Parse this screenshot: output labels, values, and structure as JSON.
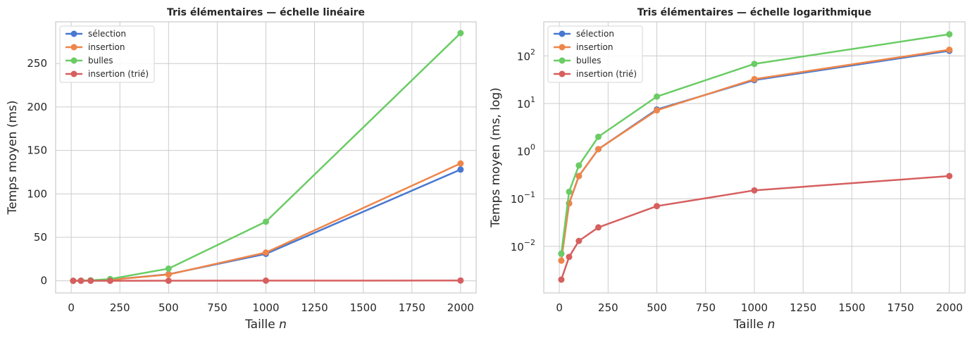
{
  "chart_data": [
    {
      "type": "line",
      "title": "Tris élémentaires — échelle linéaire",
      "xlabel": "Taille",
      "xlabel_var": "n",
      "ylabel": "Temps moyen (ms)",
      "yscale": "linear",
      "xlim": [
        -80,
        2080
      ],
      "ylim": [
        -14,
        298
      ],
      "xticks": [
        0,
        250,
        500,
        750,
        1000,
        1250,
        1500,
        1750,
        2000
      ],
      "yticks": [
        0,
        50,
        100,
        150,
        200,
        250
      ],
      "ytick_labels": [
        "0",
        "50",
        "100",
        "150",
        "200",
        "250"
      ],
      "legend_position": "top-left",
      "x": [
        10,
        50,
        100,
        200,
        500,
        1000,
        2000
      ],
      "series": [
        {
          "name": "sélection",
          "color": "#4878d0",
          "values": [
            0.007,
            0.08,
            0.3,
            1.1,
            7.5,
            31,
            128
          ]
        },
        {
          "name": "insertion",
          "color": "#ee854a",
          "values": [
            0.005,
            0.08,
            0.3,
            1.1,
            7.2,
            32.5,
            135
          ]
        },
        {
          "name": "bulles",
          "color": "#6acc64",
          "values": [
            0.007,
            0.14,
            0.5,
            2.0,
            14,
            68,
            285
          ]
        },
        {
          "name": "insertion (trié)",
          "color": "#d65f5f",
          "values": [
            0.002,
            0.006,
            0.013,
            0.025,
            0.07,
            0.15,
            0.3
          ]
        }
      ]
    },
    {
      "type": "line",
      "title": "Tris élémentaires — échelle logarithmique",
      "xlabel": "Taille",
      "xlabel_var": "n",
      "ylabel": "Temps moyen (ms, log)",
      "yscale": "log",
      "xlim": [
        -80,
        2080
      ],
      "ylim": [
        0.00105,
        520
      ],
      "xticks": [
        0,
        250,
        500,
        750,
        1000,
        1250,
        1500,
        1750,
        2000
      ],
      "yticks": [
        0.01,
        0.1,
        1,
        10,
        100
      ],
      "ytick_labels": [
        {
          "base": "10",
          "exp": "−2"
        },
        {
          "base": "10",
          "exp": "−1"
        },
        {
          "base": "10",
          "exp": "0"
        },
        {
          "base": "10",
          "exp": "1"
        },
        {
          "base": "10",
          "exp": "2"
        }
      ],
      "legend_position": "top-left",
      "x": [
        10,
        50,
        100,
        200,
        500,
        1000,
        2000
      ],
      "series": [
        {
          "name": "sélection",
          "color": "#4878d0",
          "values": [
            0.007,
            0.08,
            0.3,
            1.1,
            7.5,
            31,
            128
          ]
        },
        {
          "name": "insertion",
          "color": "#ee854a",
          "values": [
            0.005,
            0.08,
            0.3,
            1.1,
            7.2,
            32.5,
            135
          ]
        },
        {
          "name": "bulles",
          "color": "#6acc64",
          "values": [
            0.007,
            0.14,
            0.5,
            2.0,
            14,
            68,
            285
          ]
        },
        {
          "name": "insertion (trié)",
          "color": "#d65f5f",
          "values": [
            0.002,
            0.006,
            0.013,
            0.025,
            0.07,
            0.15,
            0.3
          ]
        }
      ]
    }
  ]
}
